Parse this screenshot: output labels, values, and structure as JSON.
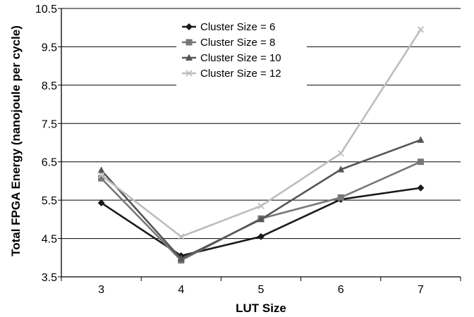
{
  "chart_data": {
    "type": "line",
    "xlabel": "LUT Size",
    "ylabel": "Total FPGA Energy (nanojoule per cycle)",
    "categories": [
      "3",
      "4",
      "5",
      "6",
      "7"
    ],
    "ylim": [
      3.5,
      10.5
    ],
    "yticks": [
      "3.5",
      "4.5",
      "5.5",
      "6.5",
      "7.5",
      "8.5",
      "9.5",
      "10.5"
    ],
    "grid": "horizontal",
    "legend_position": "top-center",
    "series": [
      {
        "name": "Cluster Size = 6",
        "color": "#1a1a1a",
        "marker": "diamond",
        "values": [
          5.43,
          4.05,
          4.55,
          5.52,
          5.82
        ]
      },
      {
        "name": "Cluster Size = 8",
        "color": "#777777",
        "marker": "square",
        "values": [
          6.07,
          3.93,
          5.02,
          5.57,
          6.5
        ]
      },
      {
        "name": "Cluster Size = 10",
        "color": "#555555",
        "marker": "triangle",
        "values": [
          6.28,
          3.97,
          5.0,
          6.3,
          7.07
        ]
      },
      {
        "name": "Cluster Size = 12",
        "color": "#bdbdbd",
        "marker": "x",
        "values": [
          6.15,
          4.55,
          5.35,
          6.72,
          9.95
        ]
      }
    ]
  }
}
